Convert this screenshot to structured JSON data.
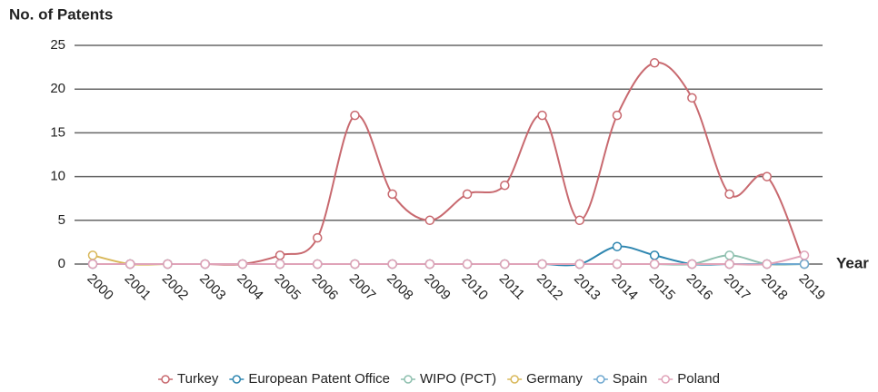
{
  "chart_data": {
    "type": "line",
    "y_label": "No. of Patents",
    "x_label": "Year",
    "categories": [
      "2000",
      "2001",
      "2002",
      "2003",
      "2004",
      "2005",
      "2006",
      "2007",
      "2008",
      "2009",
      "2010",
      "2011",
      "2012",
      "2013",
      "2014",
      "2015",
      "2016",
      "2017",
      "2018",
      "2019"
    ],
    "series": [
      {
        "name": "Turkey",
        "color": "#c8696f",
        "values": [
          0,
          0,
          0,
          0,
          0,
          1,
          3,
          17,
          8,
          5,
          8,
          9,
          17,
          5,
          17,
          23,
          19,
          8,
          10,
          0
        ]
      },
      {
        "name": "European Patent Office",
        "color": "#2e86b0",
        "values": [
          0,
          0,
          0,
          0,
          0,
          0,
          0,
          0,
          0,
          0,
          0,
          0,
          0,
          0,
          2,
          1,
          0,
          0,
          0,
          0
        ]
      },
      {
        "name": "WIPO (PCT)",
        "color": "#8dbfae",
        "values": [
          0,
          0,
          0,
          0,
          0,
          0,
          0,
          0,
          0,
          0,
          0,
          0,
          0,
          0,
          0,
          0,
          0,
          1,
          0,
          0
        ]
      },
      {
        "name": "Germany",
        "color": "#d9b85a",
        "values": [
          1,
          0,
          0,
          0,
          0,
          0,
          0,
          0,
          0,
          0,
          0,
          0,
          0,
          0,
          0,
          0,
          0,
          0,
          0,
          0
        ]
      },
      {
        "name": "Spain",
        "color": "#6fa8d0",
        "values": [
          0,
          0,
          0,
          0,
          0,
          0,
          0,
          0,
          0,
          0,
          0,
          0,
          0,
          0,
          0,
          0,
          0,
          0,
          0,
          0
        ]
      },
      {
        "name": "Poland",
        "color": "#e0a3b8",
        "values": [
          0,
          0,
          0,
          0,
          0,
          0,
          0,
          0,
          0,
          0,
          0,
          0,
          0,
          0,
          0,
          0,
          0,
          0,
          0,
          1
        ]
      }
    ],
    "ylim": [
      0,
      25
    ],
    "yticks": [
      0,
      5,
      10,
      15,
      20,
      25
    ],
    "grid": true,
    "legend": "bottom"
  }
}
